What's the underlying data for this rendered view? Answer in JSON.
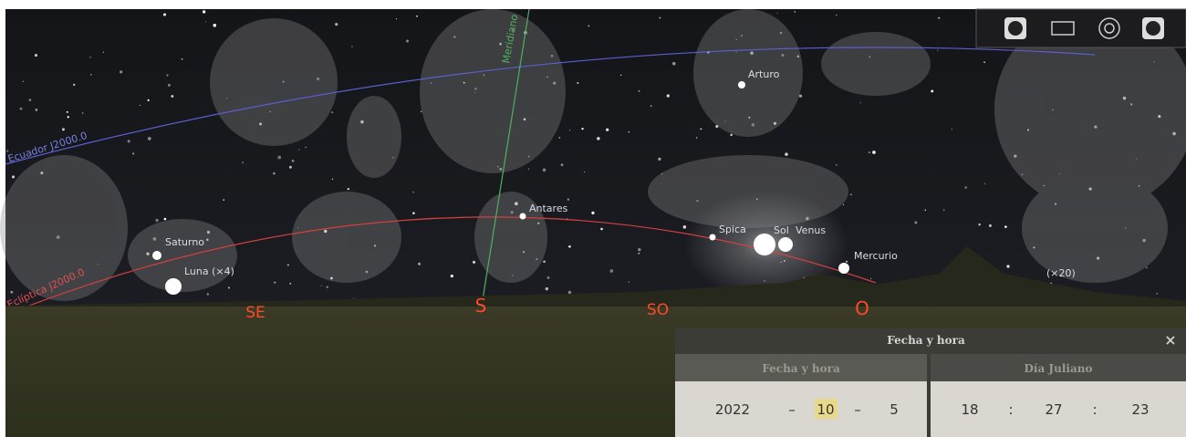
{
  "sky_labels": {
    "meridian": "Meridiano",
    "equator": "Ecuador J2000.0",
    "ecliptic": "Eclíptica J2000.0"
  },
  "objects": [
    {
      "label": "Arturo"
    },
    {
      "label": "Antares"
    },
    {
      "label": "Spica"
    },
    {
      "label": "Sol"
    },
    {
      "label": "Venus"
    },
    {
      "label": "Mercurio"
    },
    {
      "label": "Saturno"
    },
    {
      "label": "Luna (×4)"
    },
    {
      "label": "(×20)"
    }
  ],
  "cardinals": [
    "SE",
    "S",
    "SO",
    "O"
  ],
  "dialog": {
    "title": "Fecha y hora",
    "close": "×",
    "tabs": [
      "Fecha y hora",
      "Día Juliano"
    ],
    "date": {
      "year": 2022,
      "month": 10,
      "day": 5
    },
    "time": {
      "hour": 18,
      "minute": 27,
      "second": 23
    },
    "date_separator": "–",
    "time_separator": ":"
  }
}
